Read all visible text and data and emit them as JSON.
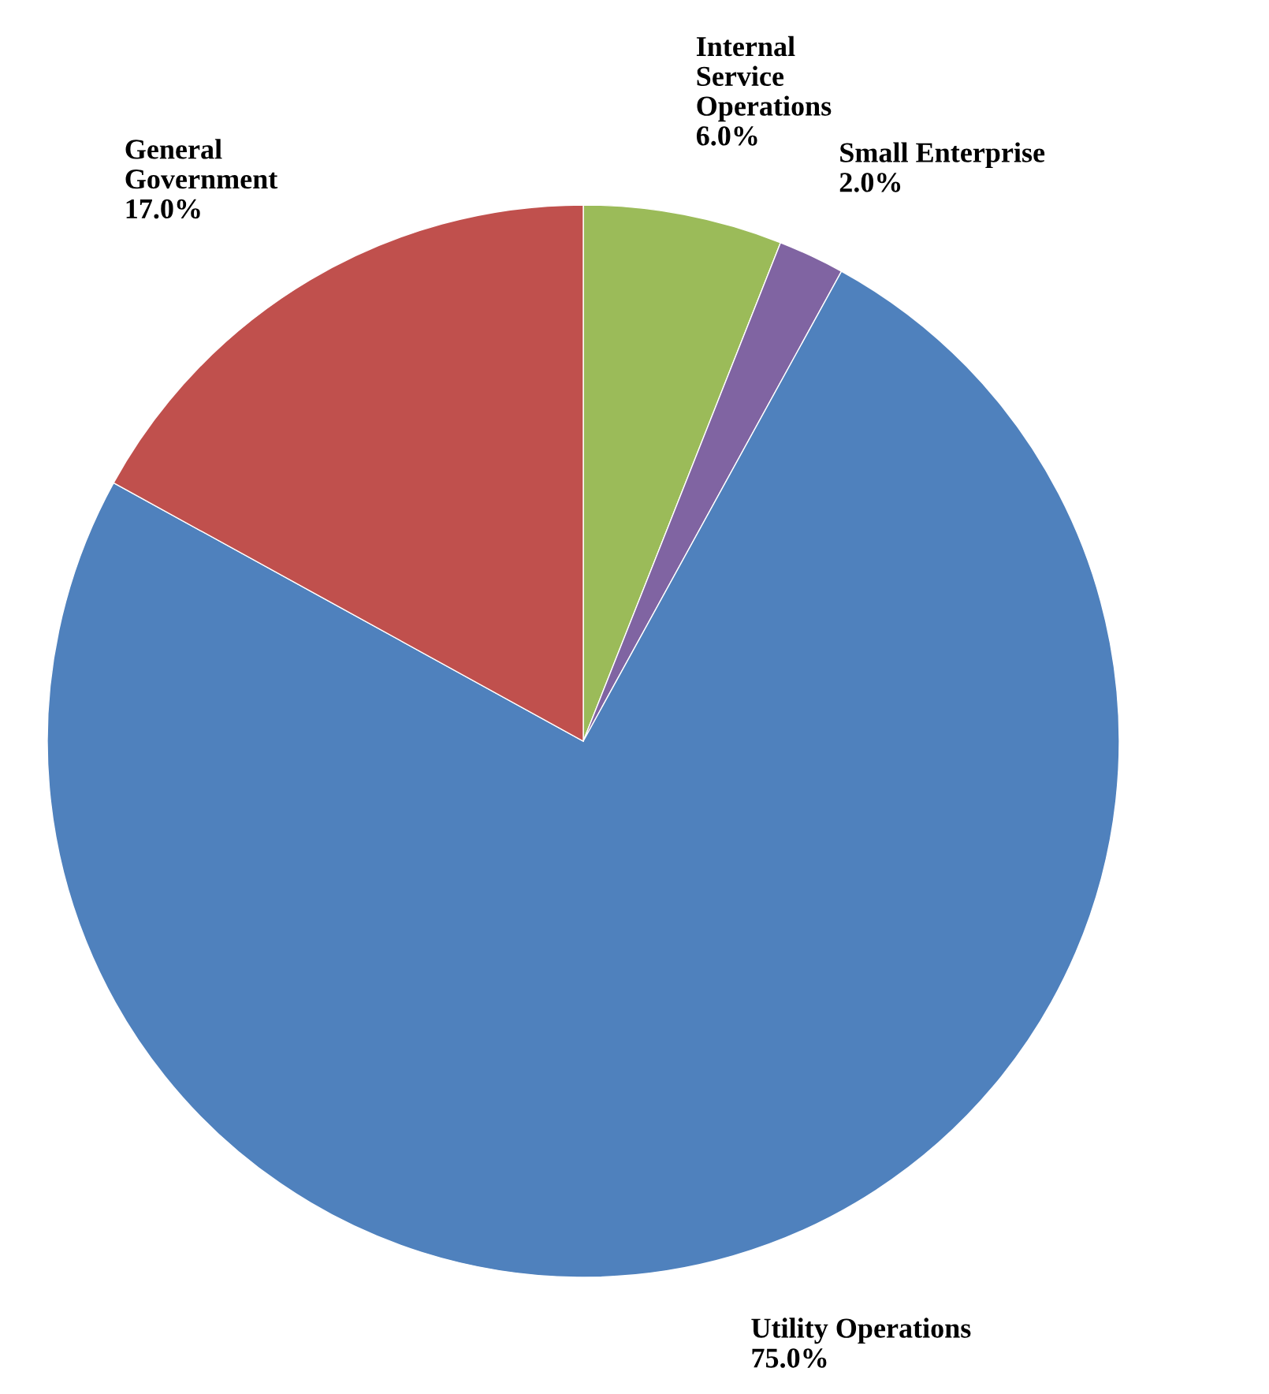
{
  "chart_data": {
    "type": "pie",
    "categories": [
      "Internal\nService\nOperations",
      "Small Enterprise",
      "Utility Operations",
      "General\nGovernment"
    ],
    "values": [
      6.0,
      2.0,
      75.0,
      17.0
    ],
    "value_labels": [
      "6.0%",
      "2.0%",
      "75.0%",
      "17.0%"
    ],
    "colors": [
      "#9bbb59",
      "#8064a2",
      "#4f81bd",
      "#c0504d"
    ],
    "legend": false
  }
}
